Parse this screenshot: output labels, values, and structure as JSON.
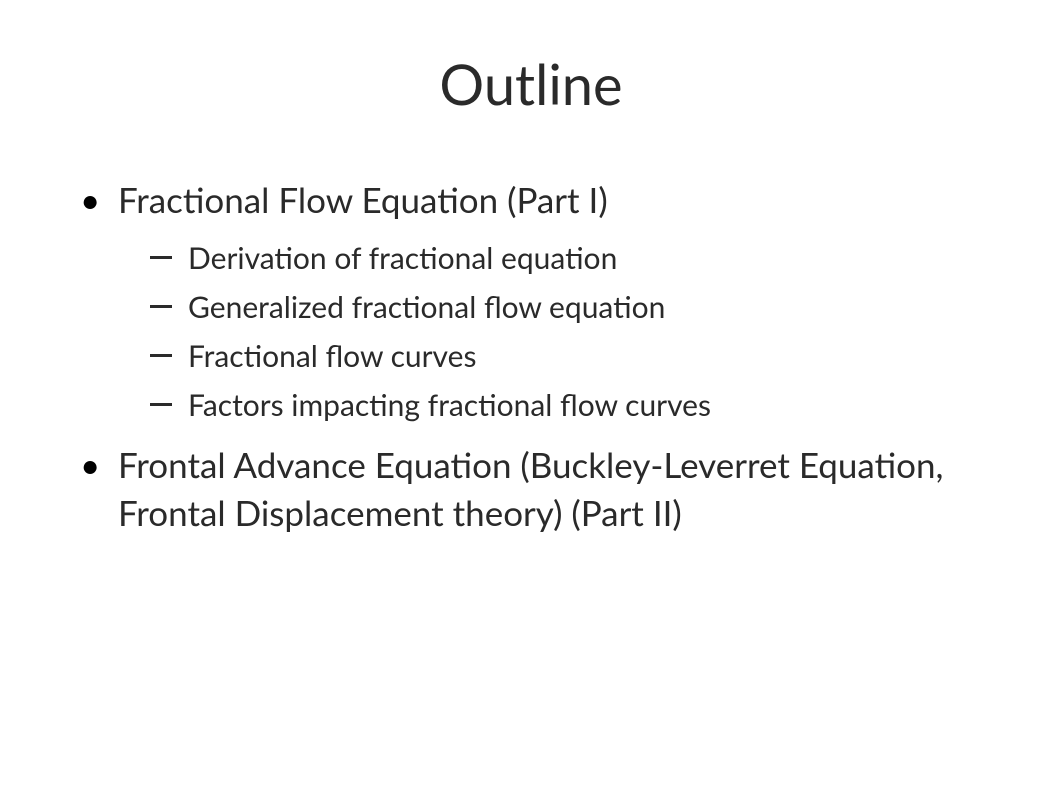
{
  "slide": {
    "title": "Outline",
    "items": [
      {
        "label": "Fractional Flow Equation (Part I)",
        "subitems": [
          "Derivation of fractional equation",
          "Generalized fractional flow equation",
          "Fractional flow curves",
          "Factors impacting fractional flow curves"
        ]
      },
      {
        "label": "Frontal Advance Equation (Buckley-Leverret Equation, Frontal Displacement theory) (Part II)",
        "subitems": []
      }
    ]
  },
  "styling": {
    "background_color": "#ffffff",
    "text_color": "#2a2a2a",
    "title_fontsize": 56,
    "item_fontsize": 35,
    "subitem_fontsize": 30,
    "font_family": "Segoe UI",
    "bullet_style_main": "disc",
    "bullet_style_sub": "dash"
  }
}
